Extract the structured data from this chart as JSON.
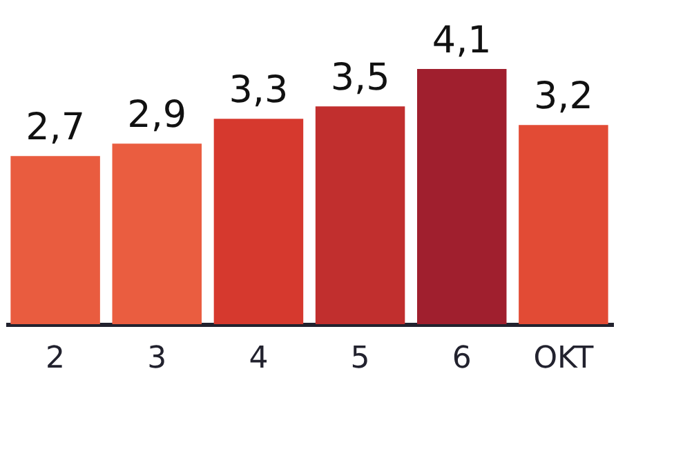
{
  "chart_data": {
    "type": "bar",
    "categories": [
      "2",
      "3",
      "4",
      "5",
      "6",
      "OKT"
    ],
    "values": [
      2.7,
      2.9,
      3.3,
      3.5,
      4.1,
      3.2
    ],
    "colors": [
      "#e95c3f",
      "#ea5d40",
      "#d6392e",
      "#c12f2e",
      "#a01f2e",
      "#e24b35"
    ],
    "value_labels": [
      "2,7",
      "2,9",
      "3,3",
      "3,5",
      "4,1",
      "3,2"
    ]
  }
}
